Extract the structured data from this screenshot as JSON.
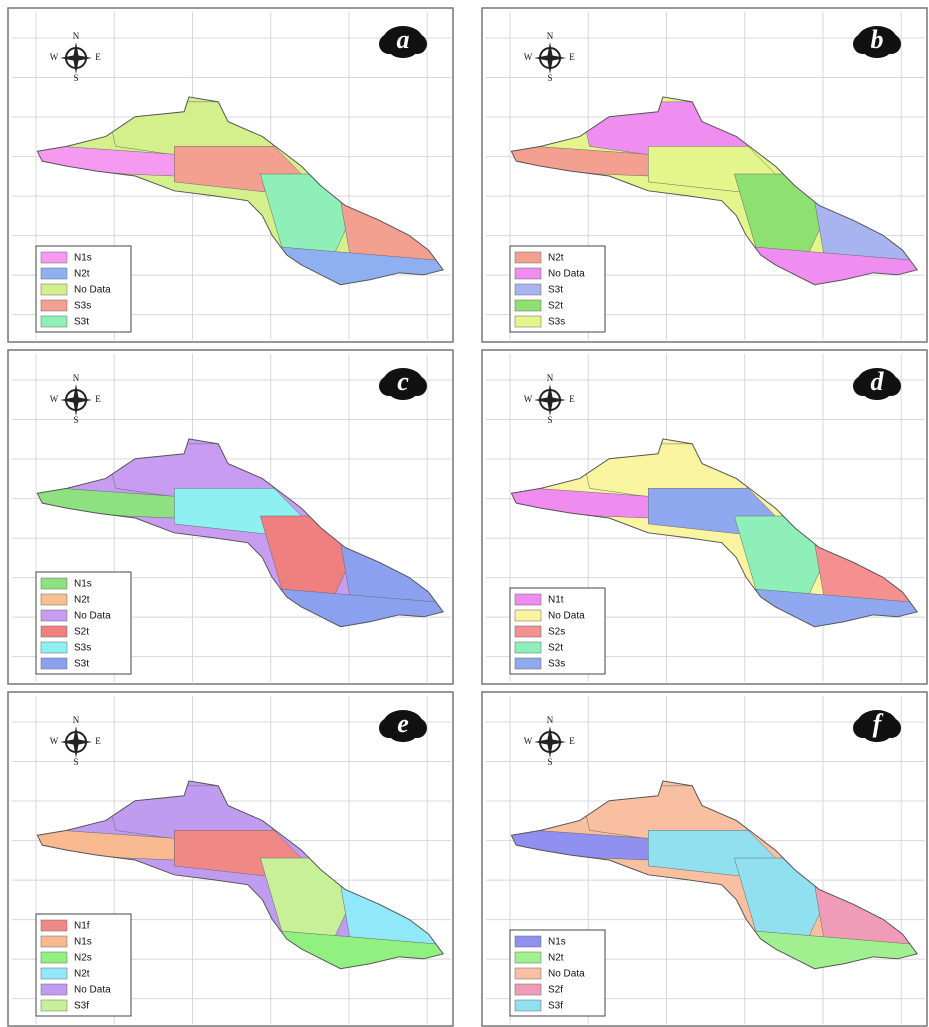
{
  "compass": {
    "n": "N",
    "s": "S",
    "e": "E",
    "w": "W"
  },
  "panels": [
    {
      "label": "a",
      "legend": [
        {
          "name": "N1s",
          "color": "#f59af0"
        },
        {
          "name": "N2t",
          "color": "#8fb0f0"
        },
        {
          "name": "No Data",
          "color": "#d4f08c"
        },
        {
          "name": "S3s",
          "color": "#f4a090"
        },
        {
          "name": "S3t",
          "color": "#8ef0b8"
        }
      ]
    },
    {
      "label": "b",
      "legend": [
        {
          "name": "N2t",
          "color": "#f4a090"
        },
        {
          "name": "No Data",
          "color": "#ef8ef0"
        },
        {
          "name": "S3t",
          "color": "#a8b4f0"
        },
        {
          "name": "S2t",
          "color": "#8ee070"
        },
        {
          "name": "S3s",
          "color": "#e4f58c"
        }
      ]
    },
    {
      "label": "c",
      "legend": [
        {
          "name": "N1s",
          "color": "#8ee080"
        },
        {
          "name": "N2t",
          "color": "#f8c090"
        },
        {
          "name": "No Data",
          "color": "#c89cf0"
        },
        {
          "name": "S2t",
          "color": "#f08080"
        },
        {
          "name": "S3s",
          "color": "#8ef0f0"
        },
        {
          "name": "S3t",
          "color": "#8ca0f0"
        }
      ]
    },
    {
      "label": "d",
      "legend": [
        {
          "name": "N1t",
          "color": "#f08cf0"
        },
        {
          "name": "No Data",
          "color": "#f8f4a0"
        },
        {
          "name": "S2s",
          "color": "#f49090"
        },
        {
          "name": "S2t",
          "color": "#8ef0b8"
        },
        {
          "name": "S3s",
          "color": "#90a8f0"
        }
      ]
    },
    {
      "label": "e",
      "legend": [
        {
          "name": "N1f",
          "color": "#f08888"
        },
        {
          "name": "N1s",
          "color": "#f8b890"
        },
        {
          "name": "N2s",
          "color": "#90f080"
        },
        {
          "name": "N2t",
          "color": "#90e8f8"
        },
        {
          "name": "No Data",
          "color": "#c09cf0"
        },
        {
          "name": "S3f",
          "color": "#c8f098"
        }
      ]
    },
    {
      "label": "f",
      "legend": [
        {
          "name": "N1s",
          "color": "#9090f0"
        },
        {
          "name": "N2t",
          "color": "#a0f090"
        },
        {
          "name": "No Data",
          "color": "#f8c0a0"
        },
        {
          "name": "S2f",
          "color": "#f09cb8"
        },
        {
          "name": "S3f",
          "color": "#90e0f0"
        }
      ]
    }
  ]
}
